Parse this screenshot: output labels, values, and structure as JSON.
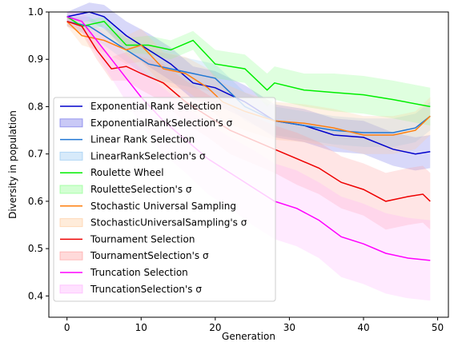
{
  "chart_data": {
    "type": "line",
    "title": "",
    "xlabel": "Generation",
    "ylabel": "Diversity in population",
    "xlim": [
      -2.45,
      51.45
    ],
    "ylim": [
      0.355,
      1.0
    ],
    "xticks": [
      0,
      10,
      20,
      30,
      40,
      50
    ],
    "yticks": [
      0.4,
      0.5,
      0.6,
      0.7,
      0.8,
      0.9,
      1.0
    ],
    "ytick_labels": [
      "0.4",
      "0.5",
      "0.6",
      "0.7",
      "0.8",
      "0.9",
      "1.0"
    ],
    "legend_position": "center-left",
    "series": [
      {
        "name": "Exponential Rank Selection",
        "band_name": "ExponentialRankSelection's σ",
        "color": "#0000cc",
        "band_color": "#6464e6",
        "x": [
          0,
          3,
          5,
          8,
          11,
          14,
          17,
          20,
          24,
          28,
          32,
          36,
          40,
          44,
          47,
          49
        ],
        "y": [
          0.99,
          1.0,
          0.99,
          0.95,
          0.92,
          0.89,
          0.85,
          0.84,
          0.81,
          0.77,
          0.76,
          0.74,
          0.735,
          0.71,
          0.7,
          0.705
        ],
        "sigma": [
          0.01,
          0.02,
          0.025,
          0.03,
          0.035,
          0.035,
          0.035,
          0.035,
          0.035,
          0.035,
          0.035,
          0.035,
          0.035,
          0.035,
          0.035,
          0.035
        ]
      },
      {
        "name": "Linear Rank Selection",
        "band_name": "LinearRankSelection's σ",
        "color": "#1f77d4",
        "band_color": "#8cc3f0",
        "x": [
          0,
          3,
          5,
          8,
          11,
          14,
          17,
          20,
          24,
          28,
          32,
          36,
          40,
          44,
          47,
          49
        ],
        "y": [
          0.98,
          0.97,
          0.95,
          0.92,
          0.89,
          0.88,
          0.87,
          0.86,
          0.8,
          0.77,
          0.76,
          0.75,
          0.745,
          0.745,
          0.755,
          0.78
        ],
        "sigma": [
          0.01,
          0.02,
          0.02,
          0.025,
          0.03,
          0.03,
          0.03,
          0.03,
          0.03,
          0.03,
          0.03,
          0.03,
          0.03,
          0.03,
          0.03,
          0.03
        ]
      },
      {
        "name": "Roulette Wheel",
        "band_name": "RouletteSelection's σ",
        "color": "#00ee00",
        "band_color": "#80ff80",
        "x": [
          0,
          2,
          5,
          8,
          11,
          14,
          17,
          20,
          24,
          27,
          28,
          32,
          36,
          40,
          44,
          49
        ],
        "y": [
          0.99,
          0.97,
          0.98,
          0.93,
          0.93,
          0.92,
          0.94,
          0.89,
          0.88,
          0.835,
          0.85,
          0.835,
          0.83,
          0.825,
          0.815,
          0.8
        ],
        "sigma": [
          0.005,
          0.01,
          0.01,
          0.015,
          0.02,
          0.02,
          0.02,
          0.03,
          0.03,
          0.035,
          0.035,
          0.035,
          0.04,
          0.04,
          0.04,
          0.04
        ]
      },
      {
        "name": "Stochastic Universal Sampling",
        "band_name": "StochasticUniversalSampling's σ",
        "color": "#ff7f0e",
        "band_color": "#ffc896",
        "x": [
          0,
          2,
          5,
          8,
          10,
          13,
          16,
          19,
          21,
          24,
          28,
          32,
          36,
          40,
          44,
          47,
          49
        ],
        "y": [
          0.98,
          0.95,
          0.94,
          0.92,
          0.93,
          0.88,
          0.87,
          0.84,
          0.81,
          0.79,
          0.77,
          0.765,
          0.755,
          0.74,
          0.74,
          0.75,
          0.78
        ],
        "sigma": [
          0.01,
          0.02,
          0.025,
          0.03,
          0.035,
          0.035,
          0.035,
          0.04,
          0.04,
          0.04,
          0.04,
          0.04,
          0.04,
          0.04,
          0.04,
          0.04,
          0.04
        ]
      },
      {
        "name": "Tournament Selection",
        "band_name": "TournamentSelection's σ",
        "color": "#ee0000",
        "band_color": "#ff9696",
        "x": [
          0,
          2,
          4,
          6,
          8,
          10,
          13,
          16,
          19,
          22,
          25,
          28,
          31,
          34,
          37,
          40,
          43,
          46,
          48,
          49
        ],
        "y": [
          0.98,
          0.97,
          0.92,
          0.88,
          0.885,
          0.87,
          0.85,
          0.81,
          0.78,
          0.75,
          0.73,
          0.71,
          0.69,
          0.67,
          0.64,
          0.625,
          0.6,
          0.61,
          0.615,
          0.6
        ],
        "sigma": [
          0.01,
          0.015,
          0.02,
          0.025,
          0.03,
          0.035,
          0.04,
          0.045,
          0.045,
          0.05,
          0.05,
          0.05,
          0.055,
          0.055,
          0.055,
          0.055,
          0.06,
          0.06,
          0.06,
          0.06
        ]
      },
      {
        "name": "Truncation Selection",
        "band_name": "TruncationSelection's σ",
        "color": "#ff00ff",
        "band_color": "#ffaaff",
        "x": [
          0,
          2,
          4,
          6,
          8,
          10,
          13,
          16,
          19,
          22,
          25,
          28,
          31,
          34,
          37,
          40,
          43,
          46,
          49
        ],
        "y": [
          0.99,
          0.98,
          0.94,
          0.9,
          0.86,
          0.82,
          0.77,
          0.73,
          0.69,
          0.66,
          0.63,
          0.6,
          0.585,
          0.56,
          0.525,
          0.51,
          0.49,
          0.48,
          0.475
        ],
        "sigma": [
          0.01,
          0.02,
          0.03,
          0.04,
          0.05,
          0.06,
          0.07,
          0.07,
          0.075,
          0.075,
          0.08,
          0.08,
          0.08,
          0.08,
          0.085,
          0.085,
          0.085,
          0.085,
          0.085
        ]
      }
    ]
  }
}
